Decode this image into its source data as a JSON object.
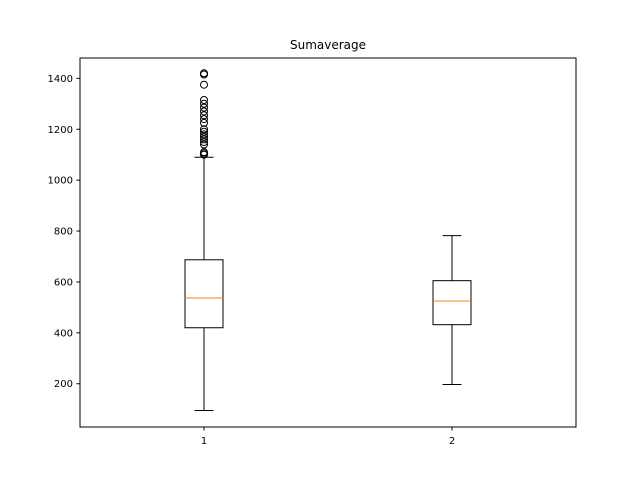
{
  "chart_data": {
    "type": "box",
    "title": "Sumaverage",
    "xlabel": "",
    "ylabel": "",
    "categories": [
      "1",
      "2"
    ],
    "y_ticks": [
      200,
      400,
      600,
      800,
      1000,
      1200,
      1400
    ],
    "ylim": [
      30,
      1480
    ],
    "grid": false,
    "colors": {
      "box": "#000000",
      "median": "#ff7f0e",
      "background": "#ffffff"
    },
    "boxes": [
      {
        "category": "1",
        "whisker_low": 95,
        "q1": 420,
        "median": 537,
        "q3": 687,
        "whisker_high": 1090,
        "outliers": [
          1100,
          1105,
          1110,
          1140,
          1150,
          1160,
          1170,
          1180,
          1190,
          1200,
          1225,
          1240,
          1255,
          1270,
          1285,
          1300,
          1315,
          1375,
          1415,
          1420
        ]
      },
      {
        "category": "2",
        "whisker_low": 197,
        "q1": 432,
        "median": 525,
        "q3": 605,
        "whisker_high": 782,
        "outliers": []
      }
    ]
  }
}
